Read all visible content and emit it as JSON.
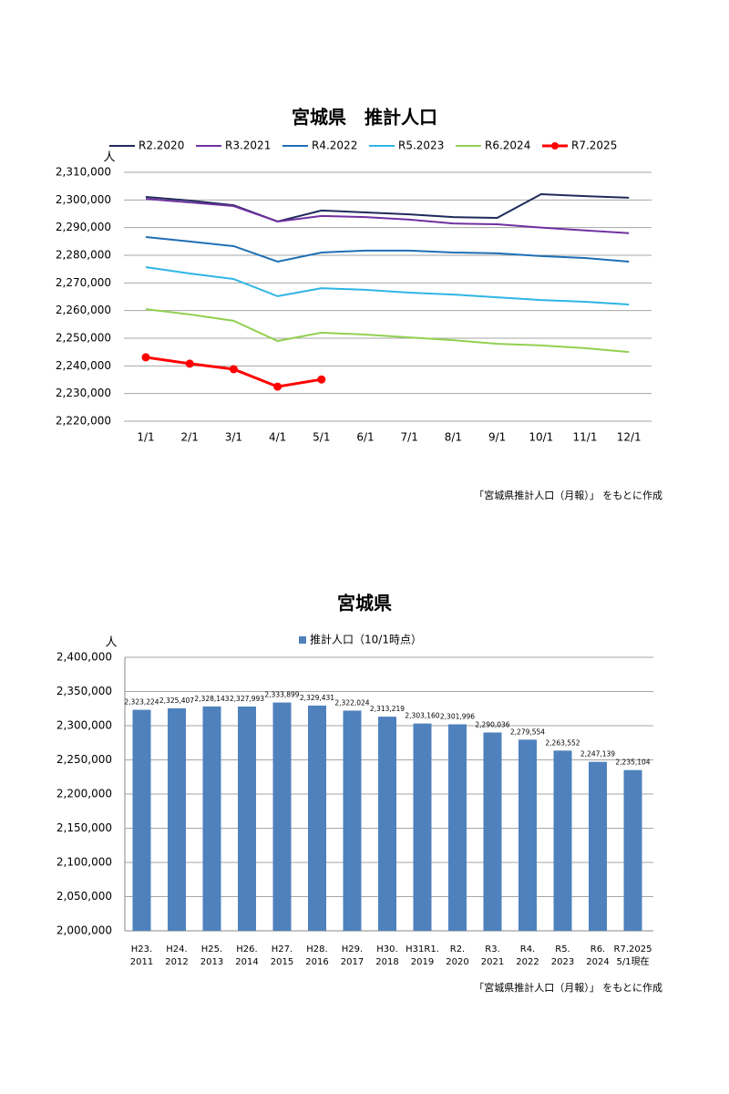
{
  "chart_data": [
    {
      "type": "line",
      "title": "宮城県　推計人口",
      "y_label": "人",
      "categories": [
        "1/1",
        "2/1",
        "3/1",
        "4/1",
        "5/1",
        "6/1",
        "7/1",
        "8/1",
        "9/1",
        "10/1",
        "11/1",
        "12/1"
      ],
      "series": [
        {
          "name": "R2.2020",
          "color": "#1f2a5a",
          "values": [
            2301100,
            2299800,
            2298100,
            2292200,
            2296200,
            2295500,
            2294800,
            2293800,
            2293500,
            2302100,
            2301400,
            2300800
          ]
        },
        {
          "name": "R3.2021",
          "color": "#7030a0",
          "values": [
            2300400,
            2299100,
            2297800,
            2292200,
            2294200,
            2293800,
            2292900,
            2291500,
            2291200,
            2290000,
            2289000,
            2288000
          ]
        },
        {
          "name": "R4.2022",
          "color": "#1f6fb4",
          "values": [
            2286600,
            2285000,
            2283300,
            2277700,
            2281000,
            2281700,
            2281700,
            2281000,
            2280700,
            2279700,
            2279000,
            2277700
          ]
        },
        {
          "name": "R5.2023",
          "color": "#2eb5e5",
          "values": [
            2275700,
            2273400,
            2271400,
            2265200,
            2268100,
            2267500,
            2266500,
            2265800,
            2264800,
            2263800,
            2263200,
            2262200
          ]
        },
        {
          "name": "R6.2024",
          "color": "#92d050",
          "values": [
            2260500,
            2258600,
            2256300,
            2249000,
            2252000,
            2251300,
            2250300,
            2249300,
            2248000,
            2247400,
            2246400,
            2245000
          ]
        },
        {
          "name": "R7.2025",
          "color": "#ff0000",
          "markers": true,
          "values": [
            2243100,
            2240800,
            2238800,
            2232500,
            2235100,
            null,
            null,
            null,
            null,
            null,
            null,
            null
          ]
        }
      ],
      "ylim": [
        2220000,
        2310000
      ],
      "yticks": [
        {
          "value": 2220000,
          "label": "2,220,000"
        },
        {
          "value": 2230000,
          "label": "2,230,000"
        },
        {
          "value": 2240000,
          "label": "2,240,000"
        },
        {
          "value": 2250000,
          "label": "2,250,000"
        },
        {
          "value": 2260000,
          "label": "2,260,000"
        },
        {
          "value": 2270000,
          "label": "2,270,000"
        },
        {
          "value": 2280000,
          "label": "2,280,000"
        },
        {
          "value": 2290000,
          "label": "2,290,000"
        },
        {
          "value": 2300000,
          "label": "2,300,000"
        },
        {
          "value": 2310000,
          "label": "2,310,000"
        }
      ],
      "grid": true,
      "legend": "top",
      "source": "「宮城県推計人口（月報）」 をもとに作成"
    },
    {
      "type": "bar",
      "title": "宮城県",
      "y_label": "人",
      "categories": [
        "H23.\n2011",
        "H24.\n2012",
        "H25.\n2013",
        "H26.\n2014",
        "H27.\n2015",
        "H28.\n2016",
        "H29.\n2017",
        "H30.\n2018",
        "H31R1.\n2019",
        "R2.\n2020",
        "R3.\n2021",
        "R4.\n2022",
        "R5.\n2023",
        "R6.\n2024",
        "R7.2025\n5/1現在"
      ],
      "series": [
        {
          "name": "推計人口（10/1時点）",
          "color": "#4f81bd",
          "values": [
            2323224,
            2325407,
            2328143,
            2327993,
            2333899,
            2329431,
            2322024,
            2313219,
            2303160,
            2301996,
            2290036,
            2279554,
            2263552,
            2247139,
            2235104
          ],
          "value_labels": [
            "2,323,224",
            "2,325,407",
            "2,328,143",
            "2,327,993",
            "2,333,899",
            "2,329,431",
            "2,322,024",
            "2,313,219",
            "2,303,160",
            "2,301,996",
            "2,290,036",
            "2,279,554",
            "2,263,552",
            "2,247,139",
            "2,235,104"
          ]
        }
      ],
      "ylim": [
        2000000,
        2400000
      ],
      "yticks": [
        {
          "value": 2000000,
          "label": "2,000,000"
        },
        {
          "value": 2050000,
          "label": "2,050,000"
        },
        {
          "value": 2100000,
          "label": "2,100,000"
        },
        {
          "value": 2150000,
          "label": "2,150,000"
        },
        {
          "value": 2200000,
          "label": "2,200,000"
        },
        {
          "value": 2250000,
          "label": "2,250,000"
        },
        {
          "value": 2300000,
          "label": "2,300,000"
        },
        {
          "value": 2350000,
          "label": "2,350,000"
        },
        {
          "value": 2400000,
          "label": "2,400,000"
        }
      ],
      "grid": true,
      "legend": "top",
      "source": "「宮城県推計人口（月報）」 をもとに作成"
    }
  ]
}
